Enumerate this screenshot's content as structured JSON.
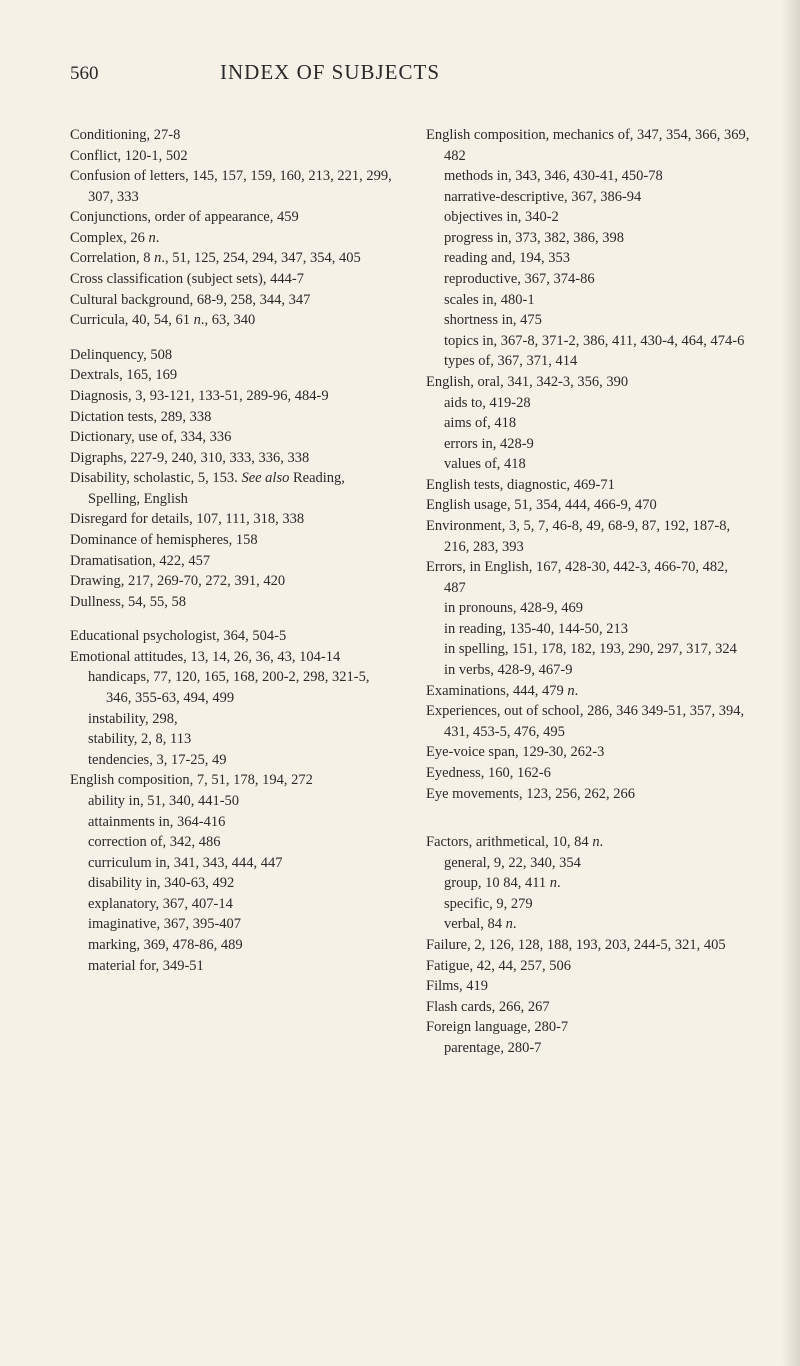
{
  "header": {
    "pageNumber": "560",
    "title": "INDEX OF SUBJECTS"
  },
  "left": [
    {
      "t": "entry",
      "v": "Conditioning, 27-8"
    },
    {
      "t": "entry",
      "v": "Conflict, 120-1, 502"
    },
    {
      "t": "entry",
      "v": "Confusion of letters, 145, 157, 159, 160, 213, 221, 299, 307, 333"
    },
    {
      "t": "entry",
      "v": "Conjunctions, order of appearance, 459"
    },
    {
      "t": "entry",
      "v": "Complex, 26 <i>n</i>."
    },
    {
      "t": "entry",
      "v": "Correlation, 8 <i>n</i>., 51, 125, 254, 294, 347, 354, 405"
    },
    {
      "t": "entry",
      "v": "Cross classification (subject sets), 444-7"
    },
    {
      "t": "entry",
      "v": "Cultural background, 68-9, 258, 344, 347"
    },
    {
      "t": "entry",
      "v": "Curricula, 40, 54, 61 <i>n</i>., 63, 340"
    },
    {
      "t": "gap"
    },
    {
      "t": "entry",
      "v": "Delinquency, 508"
    },
    {
      "t": "entry",
      "v": "Dextrals, 165, 169"
    },
    {
      "t": "entry",
      "v": "Diagnosis, 3, 93-121, 133-51, 289-96, 484-9"
    },
    {
      "t": "entry",
      "v": "Dictation tests, 289, 338"
    },
    {
      "t": "entry",
      "v": "Dictionary, use of, 334, 336"
    },
    {
      "t": "entry",
      "v": "Digraphs, 227-9, 240, 310, 333, 336, 338"
    },
    {
      "t": "entry",
      "v": "Disability, scholastic, 5, 153. <i>See also</i> Reading, Spelling, English"
    },
    {
      "t": "entry",
      "v": "Disregard for details, 107, 111, 318, 338"
    },
    {
      "t": "entry",
      "v": "Dominance of hemispheres, 158"
    },
    {
      "t": "entry",
      "v": "Dramatisation, 422, 457"
    },
    {
      "t": "entry",
      "v": "Drawing, 217, 269-70, 272, 391, 420"
    },
    {
      "t": "entry",
      "v": "Dullness, 54, 55, 58"
    },
    {
      "t": "gap"
    },
    {
      "t": "entry",
      "v": "Educational psychologist, 364, 504-5"
    },
    {
      "t": "entry",
      "v": "Emotional attitudes, 13, 14, 26, 36, 43, 104-14"
    },
    {
      "t": "sub",
      "v": "handicaps, 77, 120, 165, 168, 200-2, 298, 321-5, 346, 355-63, 494, 499"
    },
    {
      "t": "sub",
      "v": "instability, 298,"
    },
    {
      "t": "sub",
      "v": "stability, 2, 8, 113"
    },
    {
      "t": "sub",
      "v": "tendencies, 3, 17-25, 49"
    },
    {
      "t": "entry",
      "v": "English composition, 7, 51, 178, 194, 272"
    },
    {
      "t": "sub",
      "v": "ability in, 51, 340, 441-50"
    },
    {
      "t": "sub",
      "v": "attainments in, 364-416"
    },
    {
      "t": "sub",
      "v": "correction of, 342, 486"
    },
    {
      "t": "sub",
      "v": "curriculum in, 341, 343, 444, 447"
    },
    {
      "t": "sub",
      "v": "disability in, 340-63, 492"
    },
    {
      "t": "sub",
      "v": "explanatory, 367, 407-14"
    },
    {
      "t": "sub",
      "v": "imaginative, 367, 395-407"
    },
    {
      "t": "sub",
      "v": "marking, 369, 478-86, 489"
    },
    {
      "t": "sub",
      "v": "material for, 349-51"
    }
  ],
  "right": [
    {
      "t": "entry",
      "v": "English composition, mechanics of, 347, 354, 366, 369, 482"
    },
    {
      "t": "sub",
      "v": "methods in, 343, 346, 430-41, 450-78"
    },
    {
      "t": "sub",
      "v": "narrative-descriptive, 367, 386-94"
    },
    {
      "t": "sub",
      "v": "objectives in, 340-2"
    },
    {
      "t": "sub",
      "v": "progress in, 373, 382, 386, 398"
    },
    {
      "t": "sub",
      "v": "reading and, 194, 353"
    },
    {
      "t": "sub",
      "v": "reproductive, 367, 374-86"
    },
    {
      "t": "sub",
      "v": "scales in, 480-1"
    },
    {
      "t": "sub",
      "v": "shortness in, 475"
    },
    {
      "t": "sub",
      "v": "topics in, 367-8, 371-2, 386, 411, 430-4, 464, 474-6"
    },
    {
      "t": "sub",
      "v": "types of, 367, 371, 414"
    },
    {
      "t": "entry",
      "v": "English, oral, 341, 342-3, 356, 390"
    },
    {
      "t": "sub",
      "v": "aids to, 419-28"
    },
    {
      "t": "sub",
      "v": "aims of, 418"
    },
    {
      "t": "sub",
      "v": "errors in, 428-9"
    },
    {
      "t": "sub",
      "v": "values of, 418"
    },
    {
      "t": "entry",
      "v": "English tests, diagnostic, 469-71"
    },
    {
      "t": "entry",
      "v": "English usage, 51, 354, 444, 466-9, 470"
    },
    {
      "t": "entry",
      "v": "Environment, 3, 5, 7, 46-8, 49, 68-9, 87, 192, 187-8, 216, 283, 393"
    },
    {
      "t": "entry",
      "v": "Errors, in English, 167, 428-30, 442-3, 466-70, 482, 487"
    },
    {
      "t": "sub",
      "v": "in pronouns, 428-9, 469"
    },
    {
      "t": "sub",
      "v": "in reading, 135-40, 144-50, 213"
    },
    {
      "t": "sub",
      "v": "in spelling, 151, 178, 182, 193, 290, 297, 317, 324"
    },
    {
      "t": "sub",
      "v": "in verbs, 428-9, 467-9"
    },
    {
      "t": "entry",
      "v": "Examinations, 444, 479 <i>n</i>."
    },
    {
      "t": "entry",
      "v": "Experiences, out of school, 286, 346 349-51, 357, 394, 431, 453-5, 476, 495"
    },
    {
      "t": "entry",
      "v": "Eye-voice span, 129-30, 262-3"
    },
    {
      "t": "entry",
      "v": "Eyedness, 160, 162-6"
    },
    {
      "t": "entry",
      "v": "Eye movements, 123, 256, 262, 266"
    },
    {
      "t": "gap"
    },
    {
      "t": "gap"
    },
    {
      "t": "entry",
      "v": "Factors, arithmetical, 10, 84 <i>n</i>."
    },
    {
      "t": "sub",
      "v": "general, 9, 22, 340, 354"
    },
    {
      "t": "sub",
      "v": "group, 10 84, 411 <i>n</i>."
    },
    {
      "t": "sub",
      "v": "specific, 9, 279"
    },
    {
      "t": "sub",
      "v": "verbal, 84 <i>n</i>."
    },
    {
      "t": "entry",
      "v": "Failure, 2, 126, 128, 188, 193, 203, 244-5, 321, 405"
    },
    {
      "t": "entry",
      "v": "Fatigue, 42, 44, 257, 506"
    },
    {
      "t": "entry",
      "v": "Films, 419"
    },
    {
      "t": "entry",
      "v": "Flash cards, 266, 267"
    },
    {
      "t": "entry",
      "v": "Foreign language, 280-7"
    },
    {
      "t": "sub",
      "v": "parentage, 280-7"
    }
  ]
}
